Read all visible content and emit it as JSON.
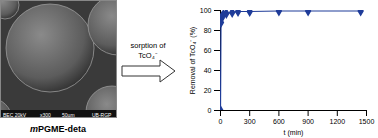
{
  "chart_data": {
    "type": "line",
    "x_label": "t (min)",
    "y_label": "Removal of TcO₄⁻ (%)",
    "x": [
      0,
      5,
      10,
      15,
      30,
      60,
      120,
      180,
      300,
      600,
      900,
      1440
    ],
    "series": [
      {
        "name": "Removal",
        "color": "#1f3c99",
        "marker": "diamond",
        "line_style": "solid",
        "values": [
          0,
          88,
          92,
          94,
          96,
          97,
          98,
          99,
          99,
          99.5,
          99.5,
          99.5
        ]
      }
    ],
    "xlim": [
      0,
      1500
    ],
    "xticks": [
      0,
      300,
      600,
      900,
      1200,
      1500
    ],
    "ylim": [
      0,
      100
    ],
    "yticks": [
      0,
      20,
      40,
      60,
      80,
      100
    ],
    "grid": false
  },
  "micrograph": {
    "label": "mPGME-deta",
    "info": [
      "BEC 20kV",
      "x300",
      "50µm",
      "UB-RGP"
    ]
  },
  "arrow": {
    "lines": [
      "sorption of",
      "TcO₄⁻"
    ]
  }
}
